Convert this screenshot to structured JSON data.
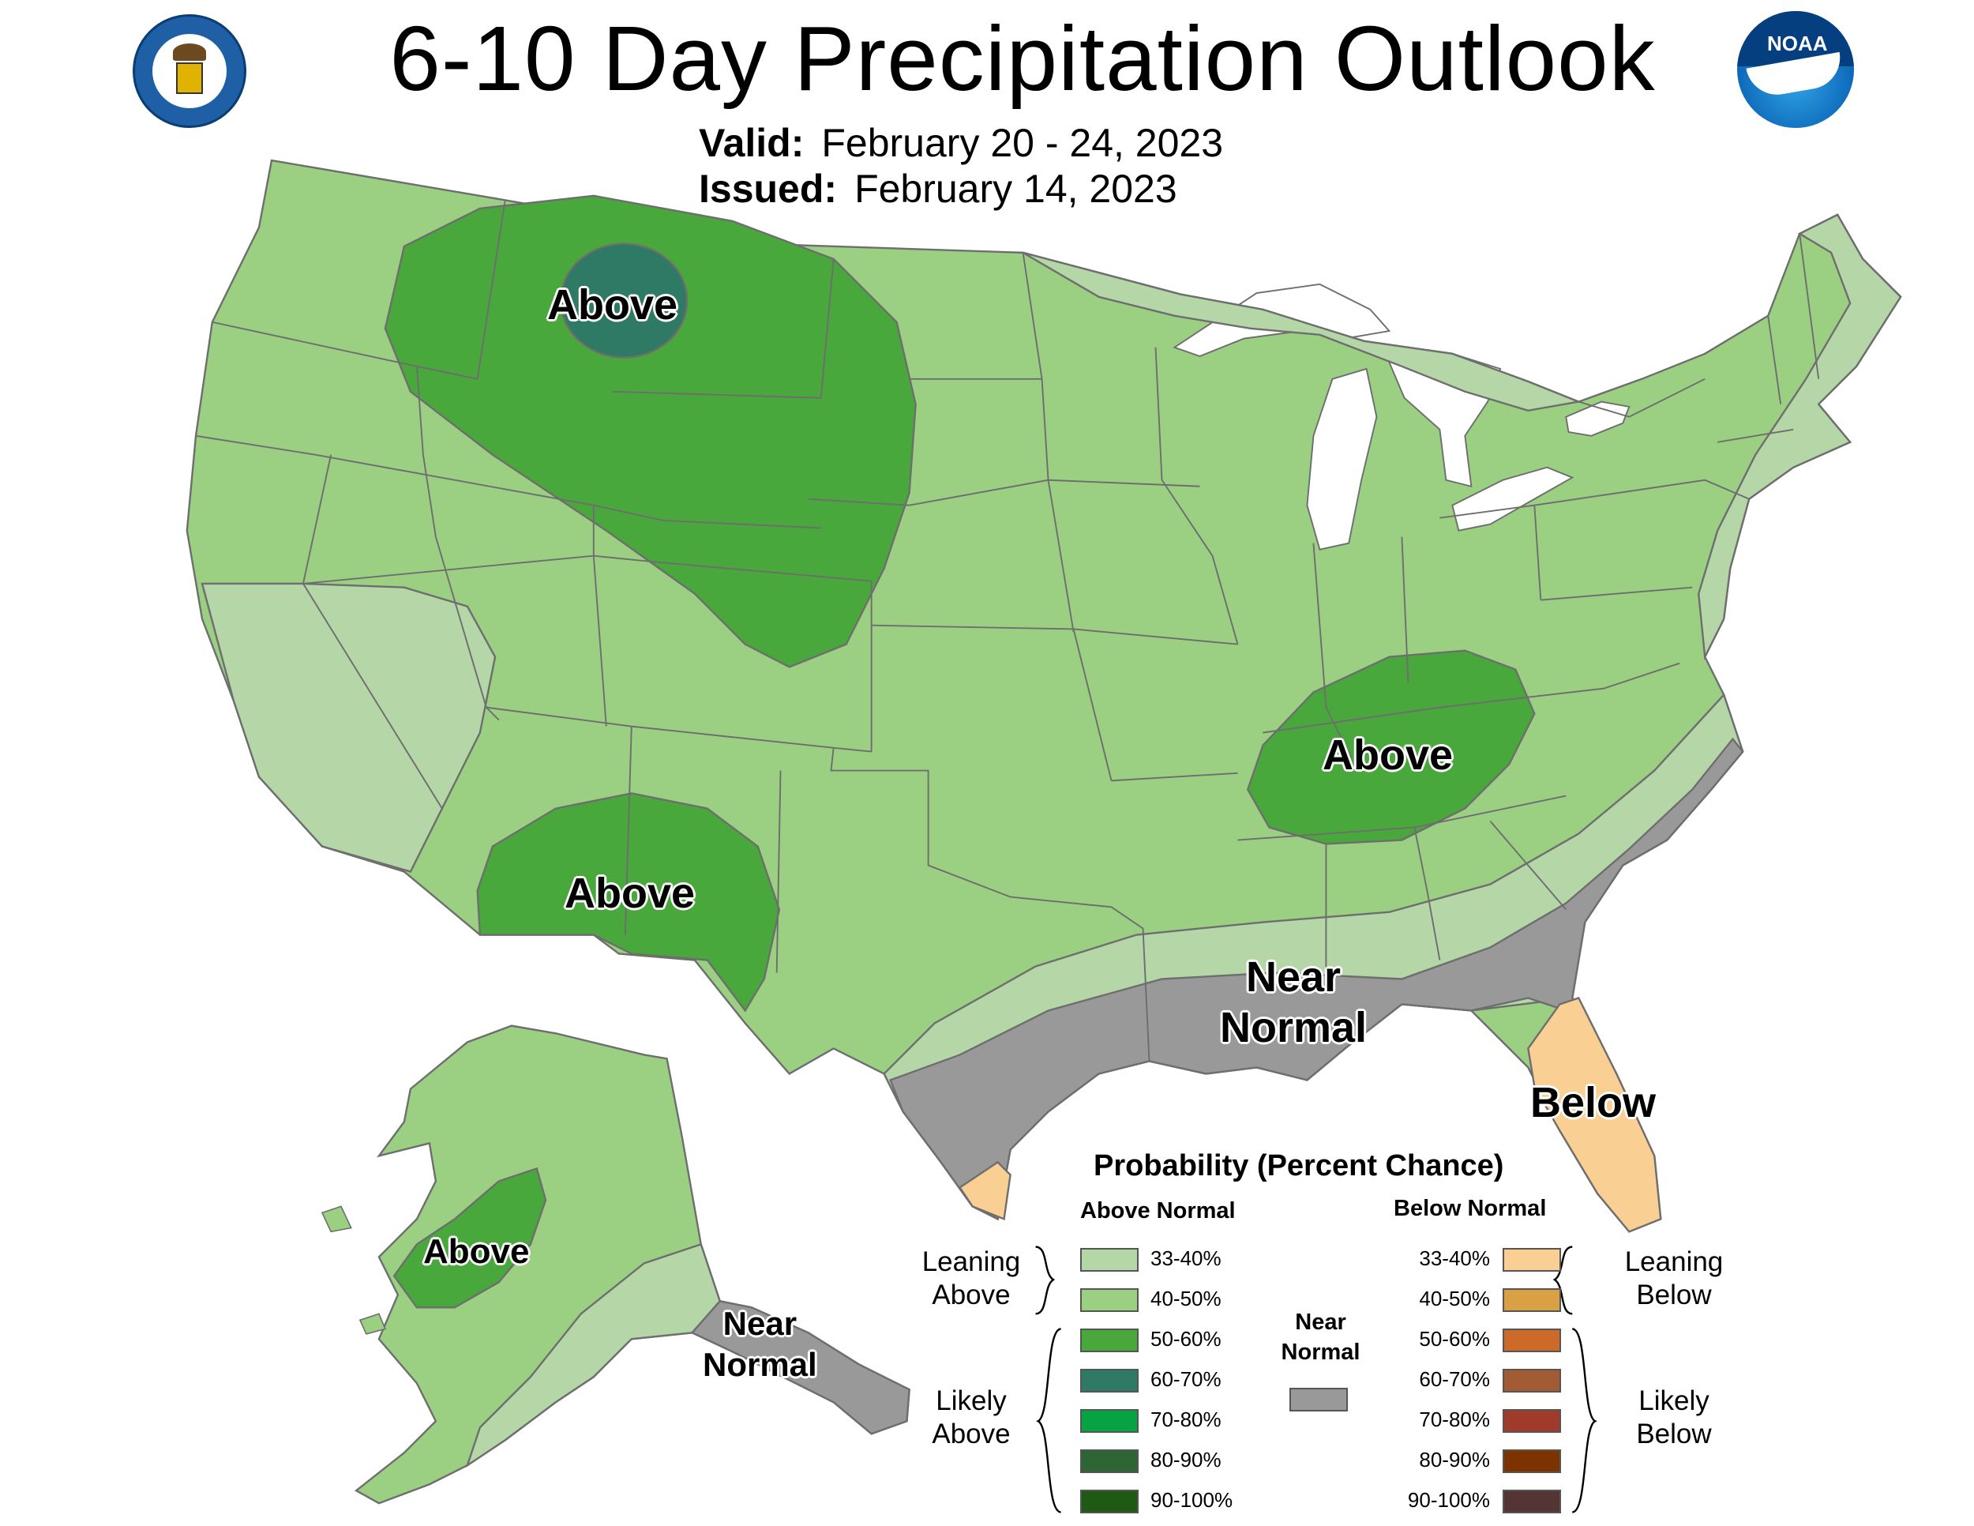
{
  "header": {
    "title": "6-10 Day Precipitation Outlook",
    "valid_label": "Valid:",
    "valid_value": "February 20 - 24, 2023",
    "issued_label": "Issued:",
    "issued_value": "February 14, 2023"
  },
  "logos": {
    "left": "doc-seal-icon",
    "right": "noaa-logo-icon"
  },
  "map_labels": {
    "above_northwest": "Above",
    "above_southwest": "Above",
    "above_ohio_valley": "Above",
    "above_alaska": "Above",
    "near_normal_gulf_1": "Near",
    "near_normal_gulf_2": "Normal",
    "near_normal_alaska_1": "Near",
    "near_normal_alaska_2": "Normal",
    "below_florida": "Below"
  },
  "colors": {
    "above_33_40": "#b5d7a8",
    "above_40_50": "#9bd083",
    "above_50_60": "#49a83b",
    "above_60_70": "#2f7a65",
    "above_70_80": "#06a244",
    "above_80_90": "#2f6434",
    "above_90_100": "#1e5a14",
    "near_normal": "#999999",
    "below_33_40": "#f9cf94",
    "below_40_50": "#d9a044",
    "below_50_60": "#cc6a2a",
    "below_60_70": "#a35b33",
    "below_70_80": "#a03b2c",
    "below_80_90": "#7d3300",
    "below_90_100": "#553434"
  },
  "legend": {
    "title": "Probability (Percent Chance)",
    "above_header": "Above Normal",
    "below_header": "Below Normal",
    "above_items": [
      "33-40%",
      "40-50%",
      "50-60%",
      "60-70%",
      "70-80%",
      "80-90%",
      "90-100%"
    ],
    "below_items": [
      "33-40%",
      "40-50%",
      "50-60%",
      "60-70%",
      "70-80%",
      "80-90%",
      "90-100%"
    ],
    "leaning_above_1": "Leaning",
    "leaning_above_2": "Above",
    "likely_above_1": "Likely",
    "likely_above_2": "Above",
    "near_normal_1": "Near",
    "near_normal_2": "Normal",
    "leaning_below_1": "Leaning",
    "leaning_below_2": "Below",
    "likely_below_1": "Likely",
    "likely_below_2": "Below"
  }
}
